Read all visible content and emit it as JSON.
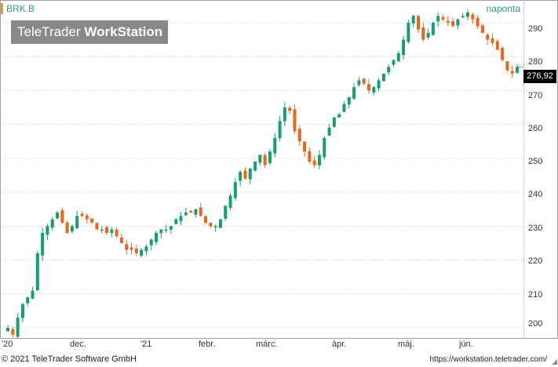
{
  "header": {
    "symbol": "BRK.B",
    "period": "naponta"
  },
  "logo": {
    "brand_regular": "TeleTrader",
    "brand_bold": "WorkStation"
  },
  "last_price": "276,92",
  "colors": {
    "up": "#1a9e6e",
    "down": "#e8671e",
    "grid": "#c8c8c8",
    "axis_accent": "#f0a000"
  },
  "chart_data": {
    "type": "candlestick",
    "title": "",
    "xlabel": "",
    "ylabel": "",
    "ylim": [
      197,
      296
    ],
    "y_ticks": [
      "200",
      "210",
      "220",
      "230",
      "240",
      "250",
      "260",
      "270",
      "280",
      "290"
    ],
    "x_ticks": [
      "'20",
      "dec.",
      "'21",
      "febr.",
      "márc.",
      "ápr.",
      "máj.",
      "jún."
    ],
    "close_path": [
      200,
      198,
      203,
      207,
      209,
      211,
      222,
      228,
      230,
      232,
      234,
      231,
      228,
      230,
      233,
      233,
      232,
      231,
      229,
      229,
      228,
      229,
      227,
      225,
      223,
      223,
      222,
      223,
      224,
      226,
      228,
      229,
      229,
      230,
      232,
      233,
      234,
      234,
      235,
      233,
      231,
      230,
      230,
      232,
      236,
      239,
      243,
      246,
      244,
      247,
      249,
      251,
      248,
      252,
      256,
      261,
      265,
      264,
      258,
      255,
      252,
      249,
      248,
      251,
      256,
      259,
      262,
      263,
      266,
      268,
      271,
      273,
      272,
      270,
      271,
      273,
      275,
      277,
      279,
      281,
      285,
      290,
      292,
      288,
      285,
      287,
      290,
      292,
      291,
      290,
      289,
      291,
      292,
      293,
      291,
      289,
      287,
      285,
      284,
      282,
      279,
      276,
      275,
      276.92
    ]
  },
  "footer": {
    "copyright": "© 2021  TeleTrader Software GmbH",
    "url": "https://workstation.teletrader.com/"
  }
}
